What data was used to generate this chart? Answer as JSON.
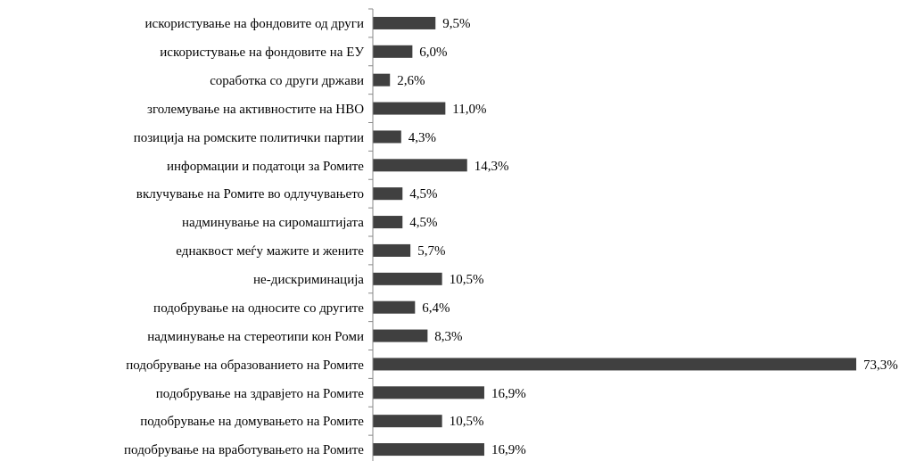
{
  "chart_data": {
    "type": "bar",
    "orientation": "horizontal",
    "categories": [
      "искористување на фондовите од други",
      "искористување на фондовите на ЕУ",
      "соработка со други држави",
      "зголемување на активностите на НВО",
      "позиција на ромските политички партии",
      "информации и податоци за Ромите",
      "вклучување на Ромите во одлучувањето",
      "надминување на сиромаштијата",
      "еднаквост меѓу мажите и жените",
      "не-дискриминација",
      "подобрување на односите со другите",
      "надминување на стереотипи кон Роми",
      "подобрување на образованието на Ромите",
      "подобрување на здравјето на Ромите",
      "подобрување на домувањето на Ромите",
      "подобрување на вработувањето на Ромите"
    ],
    "values": [
      9.5,
      6.0,
      2.6,
      11.0,
      4.3,
      14.3,
      4.5,
      4.5,
      5.7,
      10.5,
      6.4,
      8.3,
      73.3,
      16.9,
      10.5,
      16.9
    ],
    "value_labels": [
      "9,5%",
      "6,0%",
      "2,6%",
      "11,0%",
      "4,3%",
      "14,3%",
      "4,5%",
      "4,5%",
      "5,7%",
      "10,5%",
      "6,4%",
      "8,3%",
      "73,3%",
      "16,9%",
      "10,5%",
      "16,9%"
    ],
    "color": "#404040"
  }
}
